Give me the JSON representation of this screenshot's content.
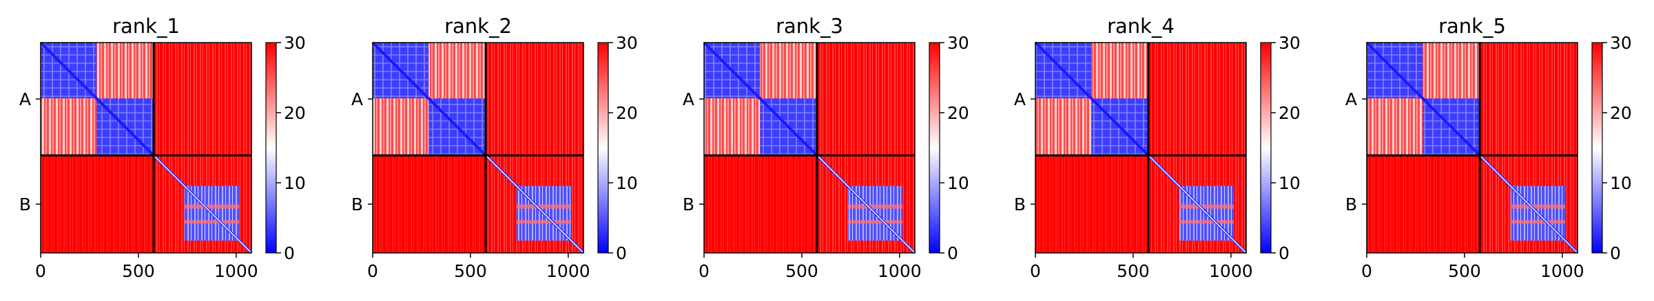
{
  "chart_data": {
    "type": "heatmap",
    "description_colormap": "bwr",
    "colorbar": {
      "vmin": 0,
      "vmax": 30,
      "ticks": [
        0,
        10,
        20,
        30
      ],
      "colors": [
        "#0000ff",
        "#ffffff",
        "#ff0000"
      ]
    },
    "matrix_size": 1078,
    "chain_boundary": 578,
    "chains": [
      "A",
      "B"
    ],
    "xticks": [
      0,
      500,
      1000
    ],
    "panels": [
      {
        "title": "rank_1"
      },
      {
        "title": "rank_2"
      },
      {
        "title": "rank_3"
      },
      {
        "title": "rank_4"
      },
      {
        "title": "rank_5"
      }
    ]
  }
}
